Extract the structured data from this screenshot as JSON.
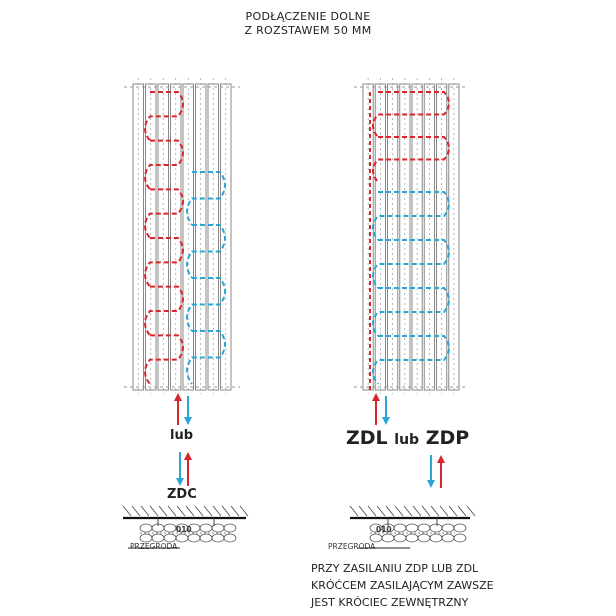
{
  "title": {
    "line1": "PODŁĄCZENIE DOLNE",
    "line2": "Z ROZSTAWEM 50 MM"
  },
  "left": {
    "connector_or": "lub",
    "connector_code": "ZDC",
    "partition_label": "PRZEGRODA",
    "partition_marker": "010"
  },
  "right": {
    "code_a": "ZDL",
    "or": "lub",
    "code_b": "ZDP",
    "partition_label": "PRZEGRODA",
    "partition_marker": "010"
  },
  "note": {
    "line1": "PRZY ZASILANIU ZDP LUB ZDL",
    "line2": "KRÓĆCEM ZASILAJĄCYM ZAWSZE",
    "line3": "JEST KRÓCIEC ZEWNĘTRZNY"
  },
  "colors": {
    "supply": "#d9262c",
    "return": "#2aa6d6",
    "line": "#333333"
  }
}
